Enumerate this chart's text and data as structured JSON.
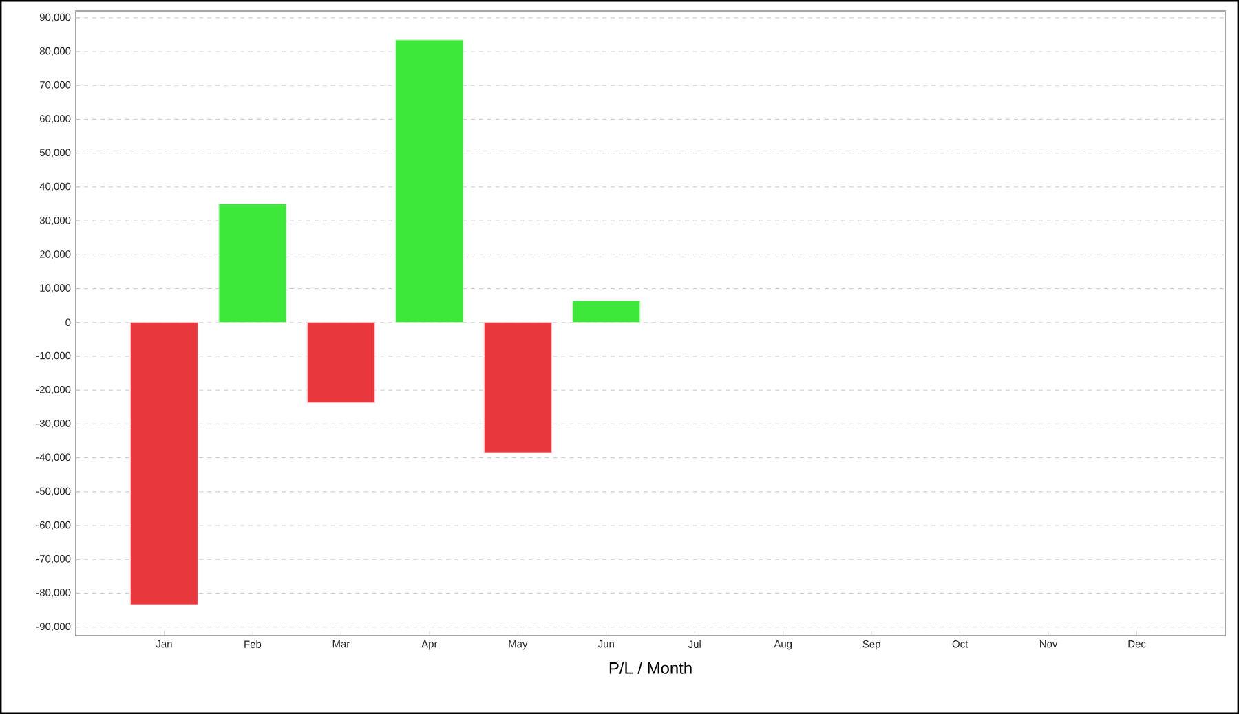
{
  "chart_data": {
    "type": "bar",
    "xlabel": "P/L / Month",
    "categories": [
      "Jan",
      "Feb",
      "Mar",
      "Apr",
      "May",
      "Jun",
      "Jul",
      "Aug",
      "Sep",
      "Oct",
      "Nov",
      "Dec"
    ],
    "values": [
      -83400,
      35000,
      -23700,
      83500,
      -38500,
      6400,
      null,
      null,
      null,
      null,
      null,
      null
    ],
    "colors": [
      "#e8383d",
      "#3ee83a",
      "#e8383d",
      "#3ee83a",
      "#e8383d",
      "#3ee83a",
      "#e8383d",
      "#e8383d",
      "#e8383d",
      "#e8383d",
      "#e8383d",
      "#e8383d"
    ],
    "ylim": [
      -92500,
      92000
    ],
    "yticks": [
      {
        "value": -90000,
        "label": "-90,000"
      },
      {
        "value": -80000,
        "label": "-80,000"
      },
      {
        "value": -70000,
        "label": "-70,000"
      },
      {
        "value": -60000,
        "label": "-60,000"
      },
      {
        "value": -50000,
        "label": "-50,000"
      },
      {
        "value": -40000,
        "label": "-40,000"
      },
      {
        "value": -30000,
        "label": "-30,000"
      },
      {
        "value": -20000,
        "label": "-20,000"
      },
      {
        "value": -10000,
        "label": "-10,000"
      },
      0,
      {
        "value": 10000,
        "label": "10,000"
      },
      {
        "value": 20000,
        "label": "20,000"
      },
      {
        "value": 30000,
        "label": "30,000"
      },
      {
        "value": 40000,
        "label": "40,000"
      },
      {
        "value": 50000,
        "label": "50,000"
      },
      {
        "value": 60000,
        "label": "60,000"
      },
      {
        "value": 70000,
        "label": "70,000"
      },
      {
        "value": 80000,
        "label": "80,000"
      },
      {
        "value": 90000,
        "label": "90,000"
      }
    ],
    "grid": "y"
  }
}
